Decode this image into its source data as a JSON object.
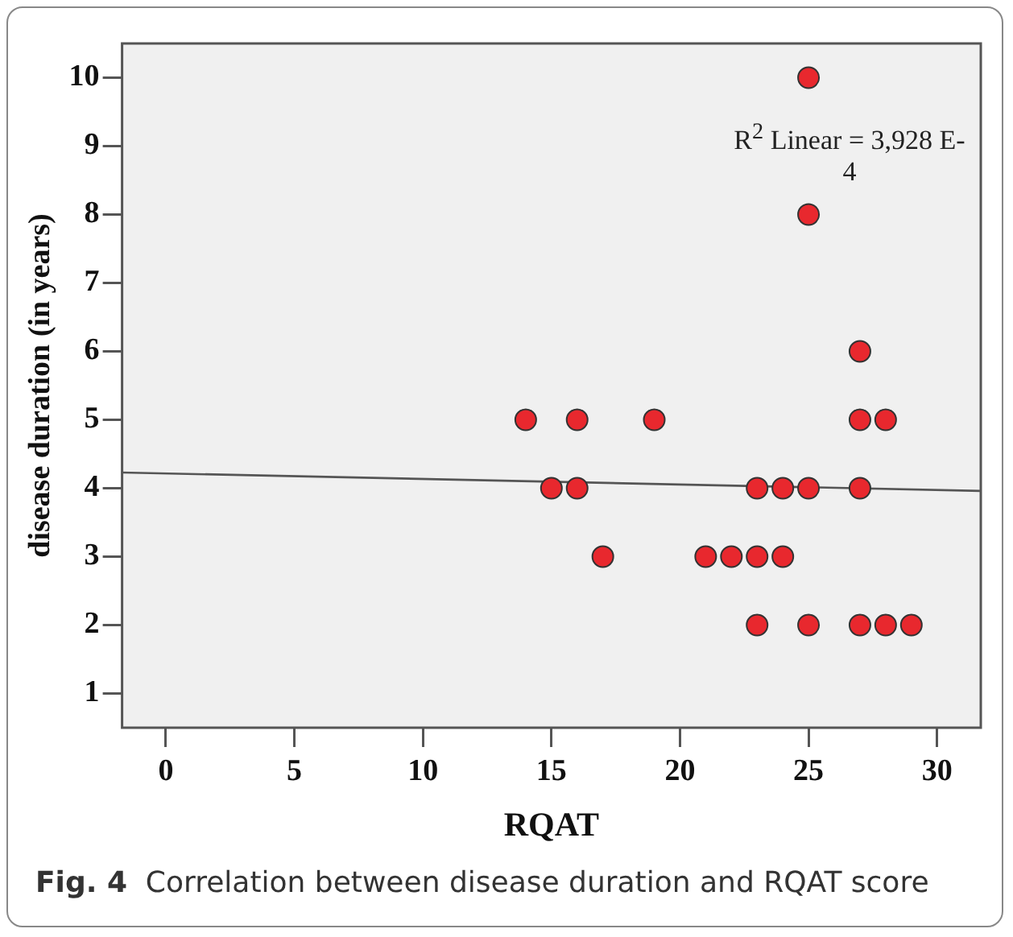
{
  "chart_data": {
    "type": "scatter",
    "xlabel": "RQAT",
    "ylabel": "disease duration (in years)",
    "xlim": [
      -1.7,
      31.7
    ],
    "ylim": [
      0.5,
      10.5
    ],
    "xticks": [
      0,
      5,
      10,
      15,
      20,
      25,
      30
    ],
    "yticks": [
      1,
      2,
      3,
      4,
      5,
      6,
      7,
      8,
      9,
      10
    ],
    "grid": false,
    "legend": false,
    "marker": "circle",
    "series": [
      {
        "color": "#e8282e",
        "x": [
          25,
          25,
          27,
          14,
          16,
          19,
          27,
          28,
          15,
          16,
          23,
          24,
          25,
          27,
          17,
          21,
          22,
          23,
          24,
          23,
          25,
          27,
          28,
          29
        ],
        "values": [
          10,
          8,
          6,
          5,
          5,
          5,
          5,
          5,
          4,
          4,
          4,
          4,
          4,
          4,
          3,
          3,
          3,
          3,
          3,
          2,
          2,
          2,
          2,
          2
        ]
      },
      {
        "type": "line",
        "color": "#555555",
        "marker": "none",
        "line_style": "solid",
        "x": [
          -1.7,
          31.7
        ],
        "values": [
          4.23,
          3.96
        ]
      }
    ],
    "annotations": [
      "R$^{2}$ Linear = 3,928 E-4",
      "Fig. 4  Correlation between disease duration and RQAT score"
    ]
  }
}
